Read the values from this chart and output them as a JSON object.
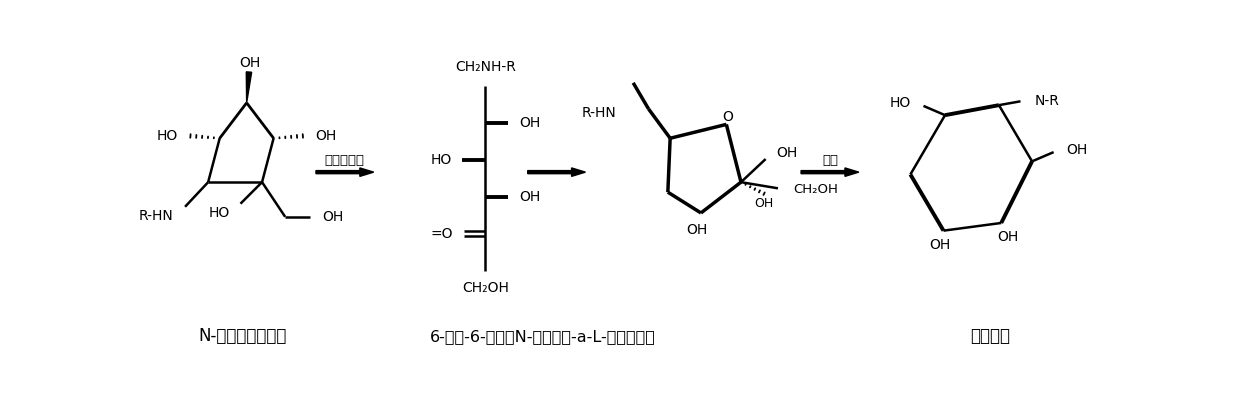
{
  "background_color": "#ffffff",
  "label1": "N-羟乙基葡萄糖胺",
  "label2": "6-脱氧-6-氨基（N-羟乙基）-a-L-呋喃山梨糖",
  "label3": "米格列醇",
  "arrow1_label": "微生物氧化",
  "arrow3_label": "氢化",
  "fig_width": 12.4,
  "fig_height": 3.95,
  "dpi": 100
}
